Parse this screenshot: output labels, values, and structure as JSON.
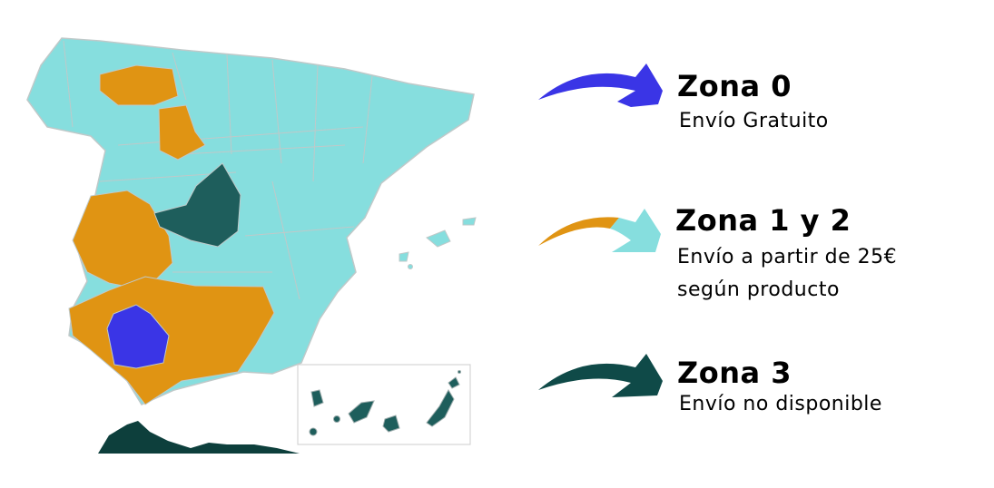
{
  "colors": {
    "zona0": "#3a35e6",
    "zona1": "#e09413",
    "zona2": "#86dede",
    "zona3": "#1e5e5c",
    "border": "#bfc9c9"
  },
  "legend": [
    {
      "title": "Zona 0",
      "lines": [
        "Envío Gratuito"
      ],
      "icon": "arrow-icon"
    },
    {
      "title": "Zona 1 y 2",
      "lines": [
        "Envío a partir de 25€",
        "según producto"
      ],
      "icon": "arrow-icon"
    },
    {
      "title": "Zona 3",
      "lines": [
        "Envío no disponible"
      ],
      "icon": "arrow-icon"
    }
  ]
}
